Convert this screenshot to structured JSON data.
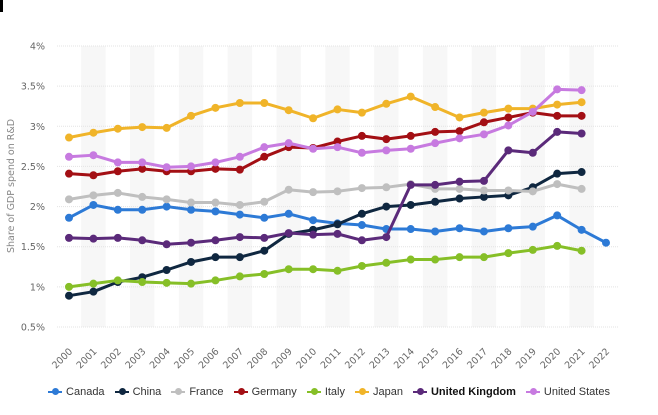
{
  "chart_data": {
    "type": "line",
    "title": "",
    "xlabel": "",
    "ylabel": "Share of GDP spend on R&D",
    "ylim": [
      0.5,
      4
    ],
    "yticks": [
      "0.5%",
      "1%",
      "1.5%",
      "2%",
      "2.5%",
      "3%",
      "3.5%",
      "4%"
    ],
    "ytick_values": [
      0.5,
      1,
      1.5,
      2,
      2.5,
      3,
      3.5,
      4
    ],
    "grid": true,
    "legend_position": "bottom",
    "x": [
      "2000",
      "2001",
      "2002",
      "2003",
      "2004",
      "2005",
      "2006",
      "2007",
      "2008",
      "2009",
      "2010",
      "2011",
      "2012",
      "2013",
      "2014",
      "2015",
      "2016",
      "2017",
      "2018",
      "2019",
      "2020",
      "2021",
      "2022"
    ],
    "series": [
      {
        "name": "Canada",
        "color": "#2d7ad6",
        "bold": false,
        "values": [
          1.86,
          2.02,
          1.96,
          1.96,
          2.0,
          1.96,
          1.94,
          1.9,
          1.86,
          1.91,
          1.83,
          1.79,
          1.77,
          1.72,
          1.72,
          1.69,
          1.73,
          1.69,
          1.73,
          1.75,
          1.89,
          1.71,
          1.55
        ]
      },
      {
        "name": "China",
        "color": "#0f2740",
        "bold": false,
        "values": [
          0.89,
          0.94,
          1.06,
          1.12,
          1.21,
          1.31,
          1.37,
          1.37,
          1.45,
          1.66,
          1.71,
          1.78,
          1.91,
          2.0,
          2.02,
          2.06,
          2.1,
          2.12,
          2.14,
          2.24,
          2.41,
          2.43,
          null
        ]
      },
      {
        "name": "France",
        "color": "#bfbfbf",
        "bold": false,
        "values": [
          2.09,
          2.14,
          2.17,
          2.12,
          2.09,
          2.05,
          2.05,
          2.02,
          2.06,
          2.21,
          2.18,
          2.19,
          2.23,
          2.24,
          2.28,
          2.22,
          2.22,
          2.2,
          2.2,
          2.19,
          2.28,
          2.22,
          null
        ]
      },
      {
        "name": "Germany",
        "color": "#a30f14",
        "bold": false,
        "values": [
          2.41,
          2.39,
          2.44,
          2.47,
          2.44,
          2.44,
          2.47,
          2.46,
          2.62,
          2.74,
          2.73,
          2.81,
          2.88,
          2.84,
          2.88,
          2.93,
          2.94,
          3.05,
          3.11,
          3.17,
          3.13,
          3.13,
          null
        ]
      },
      {
        "name": "Italy",
        "color": "#86bf27",
        "bold": false,
        "values": [
          1.0,
          1.04,
          1.08,
          1.06,
          1.05,
          1.04,
          1.08,
          1.13,
          1.16,
          1.22,
          1.22,
          1.2,
          1.26,
          1.3,
          1.34,
          1.34,
          1.37,
          1.37,
          1.42,
          1.46,
          1.51,
          1.45,
          null
        ]
      },
      {
        "name": "Japan",
        "color": "#f0b429",
        "bold": false,
        "values": [
          2.86,
          2.92,
          2.97,
          2.99,
          2.98,
          3.13,
          3.23,
          3.29,
          3.29,
          3.2,
          3.1,
          3.21,
          3.17,
          3.28,
          3.37,
          3.24,
          3.11,
          3.17,
          3.22,
          3.22,
          3.27,
          3.3,
          null
        ]
      },
      {
        "name": "United Kingdom",
        "color": "#5b2a7a",
        "bold": true,
        "values": [
          1.61,
          1.6,
          1.61,
          1.58,
          1.53,
          1.55,
          1.58,
          1.62,
          1.61,
          1.67,
          1.65,
          1.66,
          1.58,
          1.62,
          2.27,
          2.27,
          2.31,
          2.32,
          2.7,
          2.67,
          2.93,
          2.91,
          null
        ]
      },
      {
        "name": "United States",
        "color": "#c77ae0",
        "bold": false,
        "values": [
          2.62,
          2.64,
          2.55,
          2.55,
          2.49,
          2.5,
          2.55,
          2.62,
          2.74,
          2.79,
          2.72,
          2.74,
          2.67,
          2.7,
          2.72,
          2.79,
          2.85,
          2.9,
          3.01,
          3.18,
          3.46,
          3.45,
          null
        ]
      }
    ]
  }
}
